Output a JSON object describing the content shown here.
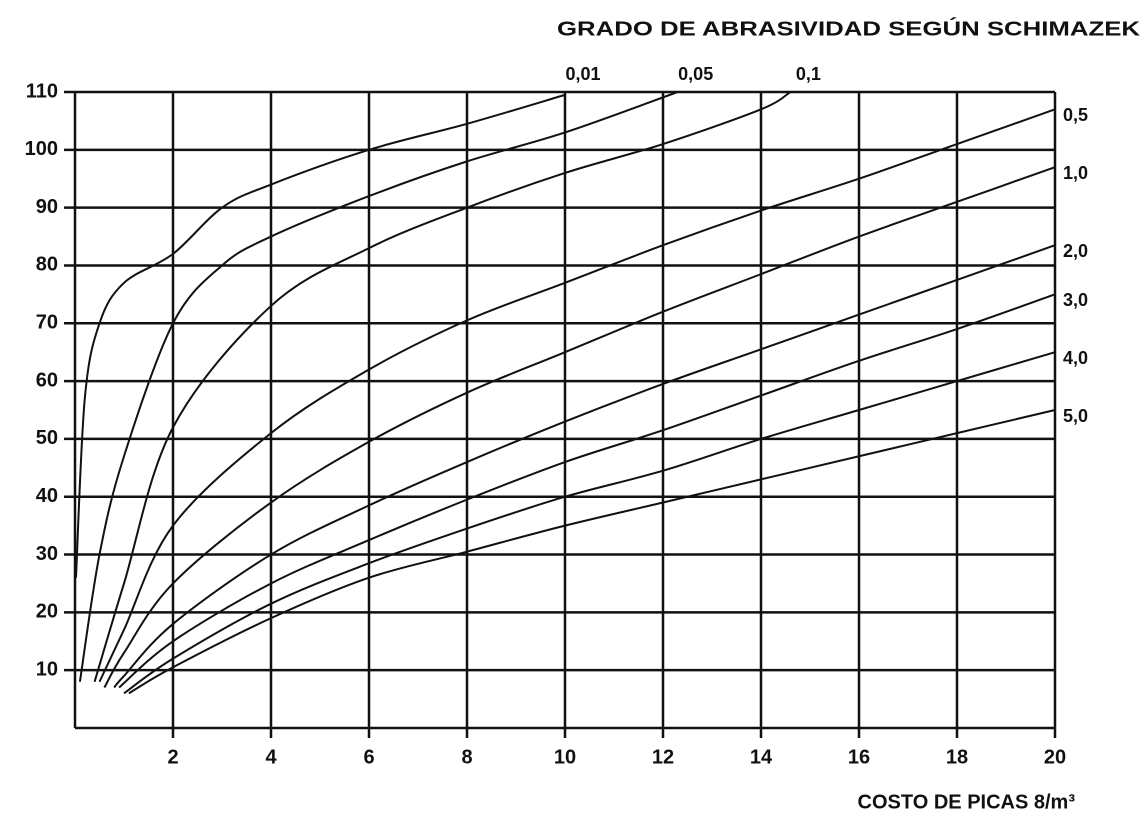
{
  "chart_data": {
    "type": "line",
    "title": "GRADO DE ABRASIVIDAD SEGÚN SCHIMAZEK",
    "x_label": "COSTO DE PICAS 8/m³",
    "xlim": [
      0,
      20
    ],
    "xticks": [
      2,
      4,
      6,
      8,
      10,
      12,
      14,
      16,
      18,
      20
    ],
    "ylim": [
      0,
      110
    ],
    "yticks": [
      10,
      20,
      30,
      40,
      50,
      60,
      70,
      80,
      90,
      100,
      110
    ],
    "grid": true,
    "series": [
      {
        "name": "0,01",
        "color": "#111111",
        "x": [
          0.02,
          0.2,
          0.5,
          1,
          2,
          3,
          4,
          6,
          8,
          10
        ],
        "values": [
          26,
          57,
          70,
          77,
          82,
          90,
          94,
          100,
          104.5,
          109.5
        ]
      },
      {
        "name": "0,05",
        "color": "#111111",
        "x": [
          0.1,
          0.5,
          1,
          2,
          3,
          4,
          6,
          8,
          10,
          12.3
        ],
        "values": [
          8,
          30,
          47,
          70,
          80,
          85,
          92,
          98,
          103,
          110
        ]
      },
      {
        "name": "0,1",
        "color": "#111111",
        "x": [
          0.4,
          1,
          2,
          4,
          6,
          8,
          10,
          12,
          14,
          14.6
        ],
        "values": [
          8,
          25,
          52,
          73,
          83,
          90,
          96,
          101,
          107,
          110
        ]
      },
      {
        "name": "0,5",
        "color": "#111111",
        "x": [
          0.5,
          1,
          2,
          4,
          6,
          8,
          10,
          12,
          14,
          16,
          18,
          20
        ],
        "values": [
          8,
          17,
          35,
          51,
          62,
          70.5,
          77,
          83.5,
          89.5,
          95,
          101,
          107
        ]
      },
      {
        "name": "1,0",
        "color": "#111111",
        "x": [
          0.6,
          1,
          2,
          4,
          6,
          8,
          10,
          12,
          14,
          16,
          18,
          20
        ],
        "values": [
          7,
          13,
          25,
          39,
          49.5,
          58,
          65,
          72,
          78.5,
          85,
          91,
          97
        ]
      },
      {
        "name": "2,0",
        "color": "#111111",
        "x": [
          0.8,
          1,
          2,
          4,
          6,
          8,
          10,
          12,
          14,
          16,
          18,
          20
        ],
        "values": [
          7,
          9,
          18,
          30,
          38.5,
          46,
          53,
          59.5,
          65.5,
          71.5,
          77.5,
          83.5
        ]
      },
      {
        "name": "3,0",
        "color": "#111111",
        "x": [
          0.9,
          2,
          4,
          6,
          8,
          10,
          12,
          14,
          16,
          18,
          20
        ],
        "values": [
          7,
          15,
          25,
          32.5,
          39.5,
          46,
          51.5,
          57.5,
          63.5,
          69,
          75
        ]
      },
      {
        "name": "4,0",
        "color": "#111111",
        "x": [
          1,
          2,
          4,
          6,
          8,
          10,
          12,
          14,
          16,
          18,
          20
        ],
        "values": [
          6,
          12,
          21.5,
          28.5,
          34.5,
          40,
          44.5,
          50,
          55,
          60,
          65
        ]
      },
      {
        "name": "5,0",
        "color": "#111111",
        "x": [
          1.1,
          2,
          4,
          6,
          8,
          10,
          12,
          14,
          16,
          18,
          20
        ],
        "values": [
          6,
          10.5,
          19,
          26,
          30.5,
          35,
          39,
          43,
          47,
          51,
          55
        ]
      }
    ]
  }
}
